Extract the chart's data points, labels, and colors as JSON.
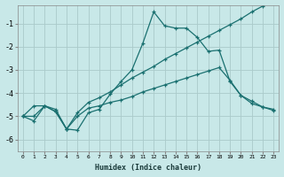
{
  "xlabel": "Humidex (Indice chaleur)",
  "x": [
    0,
    1,
    2,
    3,
    4,
    5,
    6,
    7,
    8,
    9,
    10,
    11,
    12,
    13,
    14,
    15,
    16,
    17,
    18,
    19,
    20,
    21,
    22,
    23
  ],
  "line1": [
    -5.0,
    -5.2,
    -4.55,
    -4.8,
    -5.55,
    -5.6,
    -4.85,
    -4.7,
    -4.05,
    -3.5,
    -3.0,
    -1.85,
    -0.5,
    -1.1,
    -1.2,
    -1.2,
    -1.6,
    -2.2,
    -2.15,
    -3.5,
    -4.1,
    -4.35,
    -4.6,
    -4.75
  ],
  "line2": [
    -5.0,
    -4.55,
    -4.55,
    -4.7,
    -5.55,
    -4.85,
    -4.4,
    -4.2,
    -3.95,
    -3.65,
    -3.35,
    -3.1,
    -2.85,
    -2.55,
    -2.3,
    -2.05,
    -1.8,
    -1.55,
    -1.3,
    -1.05,
    -0.8,
    -0.5,
    -0.25,
    0.0
  ],
  "line3": [
    -5.0,
    -5.0,
    -4.55,
    -4.8,
    -5.55,
    -5.0,
    -4.65,
    -4.55,
    -4.4,
    -4.3,
    -4.15,
    -3.95,
    -3.8,
    -3.65,
    -3.5,
    -3.35,
    -3.2,
    -3.05,
    -2.9,
    -3.45,
    -4.1,
    -4.45,
    -4.6,
    -4.7
  ],
  "line_color": "#1a7070",
  "bg_color": "#c8e8e8",
  "grid_color": "#aacaca",
  "ylim": [
    -6.5,
    -0.2
  ],
  "xlim": [
    -0.5,
    23.5
  ],
  "yticks": [
    -6,
    -5,
    -4,
    -3,
    -2,
    -1
  ]
}
